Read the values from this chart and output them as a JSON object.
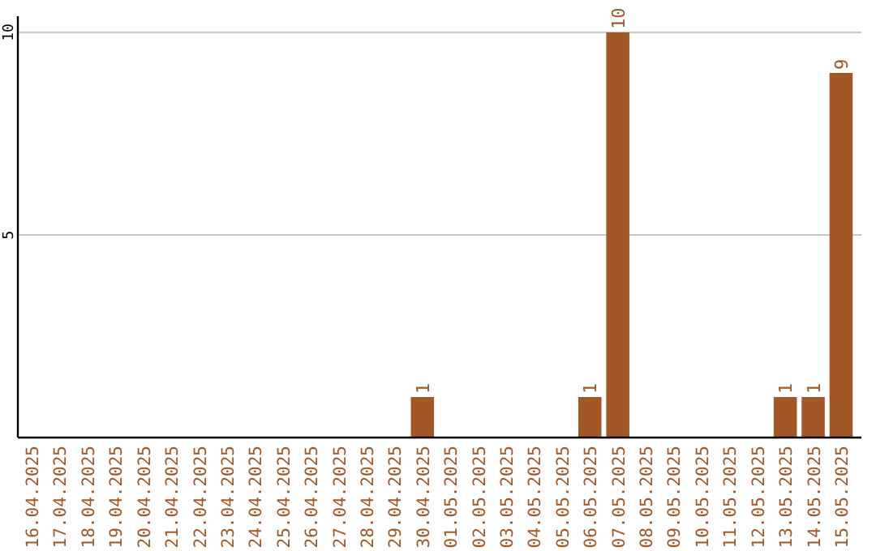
{
  "chart_data": {
    "type": "bar",
    "categories": [
      "16.04.2025",
      "17.04.2025",
      "18.04.2025",
      "19.04.2025",
      "20.04.2025",
      "21.04.2025",
      "22.04.2025",
      "23.04.2025",
      "24.04.2025",
      "25.04.2025",
      "26.04.2025",
      "27.04.2025",
      "28.04.2025",
      "29.04.2025",
      "30.04.2025",
      "01.05.2025",
      "02.05.2025",
      "03.05.2025",
      "04.05.2025",
      "05.05.2025",
      "06.05.2025",
      "07.05.2025",
      "08.05.2025",
      "09.05.2025",
      "10.05.2025",
      "11.05.2025",
      "12.05.2025",
      "13.05.2025",
      "14.05.2025",
      "15.05.2025"
    ],
    "values": [
      0,
      0,
      0,
      0,
      0,
      0,
      0,
      0,
      0,
      0,
      0,
      0,
      0,
      0,
      1,
      0,
      0,
      0,
      0,
      0,
      1,
      10,
      0,
      0,
      0,
      0,
      0,
      1,
      1,
      9
    ],
    "value_labels": [
      null,
      null,
      null,
      null,
      null,
      null,
      null,
      null,
      null,
      null,
      null,
      null,
      null,
      null,
      "1",
      null,
      null,
      null,
      null,
      null,
      "1",
      "10",
      null,
      null,
      null,
      null,
      null,
      "1",
      "1",
      "9"
    ],
    "color": "#a25826",
    "ylim": [
      0,
      10.4
    ],
    "yticks": [
      5,
      10
    ],
    "grid": "y"
  }
}
